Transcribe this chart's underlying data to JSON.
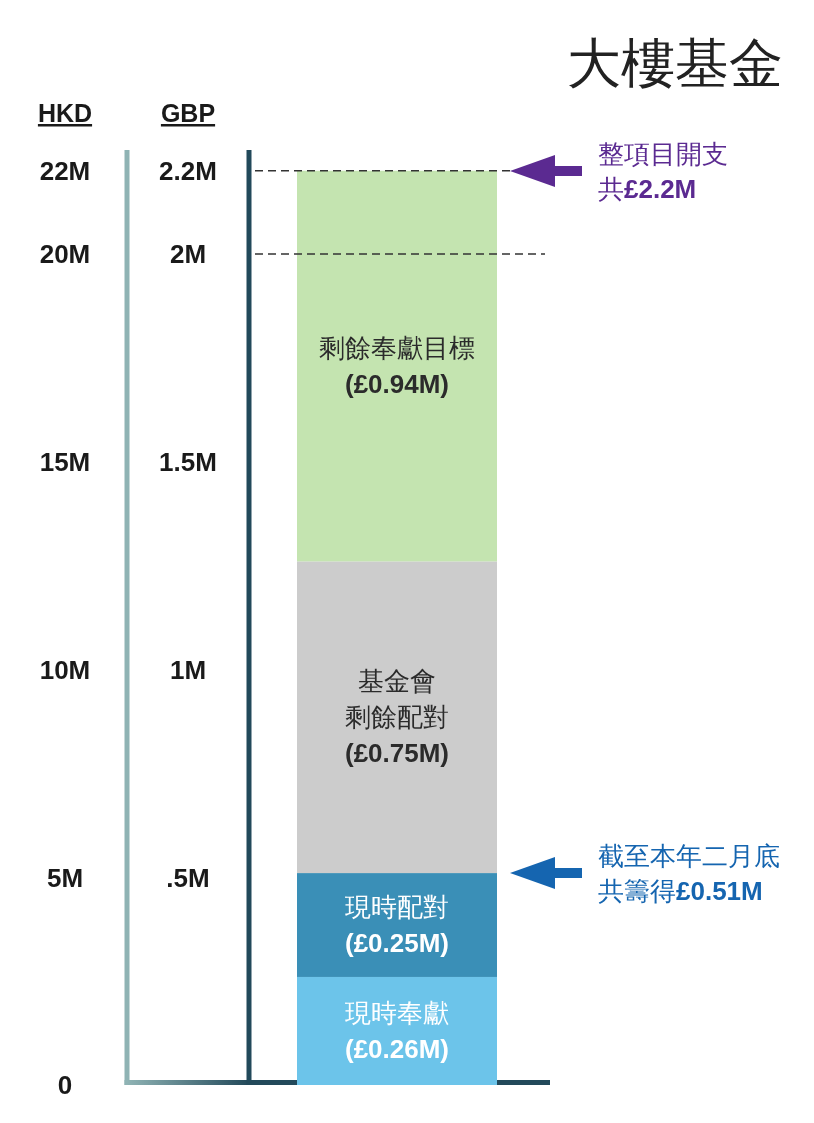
{
  "chart_data": {
    "type": "bar",
    "title": "大樓基金",
    "ylabel": "GBP",
    "y2label": "HKD",
    "categories": [
      null
    ],
    "stacked": true,
    "series": [
      {
        "name": "現時奉獻",
        "color": "#6cc4ea",
        "values": [
          0.26
        ],
        "value_labels": [
          "(£0.26M)"
        ]
      },
      {
        "name": "現時配對",
        "color": "#3a8fb7",
        "values": [
          0.25
        ],
        "value_labels": [
          "(£0.25M)"
        ]
      },
      {
        "name": "基金會剩餘配對",
        "color": "#cccccc",
        "values": [
          0.75
        ],
        "value_labels": [
          "(£0.75M)"
        ]
      },
      {
        "name": "剩餘奉獻目標",
        "color": "#c4e4b0",
        "values": [
          0.94
        ],
        "value_labels": [
          "(£0.94M)"
        ]
      }
    ],
    "ylim": [
      0,
      2.25
    ],
    "yticks": [
      {
        "value": 0.5,
        "label": ".5M"
      },
      {
        "value": 1,
        "label": "1M"
      },
      {
        "value": 1.5,
        "label": "1.5M"
      },
      {
        "value": 2,
        "label": "2M"
      },
      {
        "value": 2.2,
        "label": "2.2M"
      }
    ],
    "y2lim": [
      0,
      22.5
    ],
    "y2ticks": [
      0,
      {
        "value": 5,
        "label": "5M"
      },
      {
        "value": 10,
        "label": "10M"
      },
      {
        "value": 15,
        "label": "15M"
      },
      {
        "value": 20,
        "label": "20M"
      },
      {
        "value": 22,
        "label": "22M"
      }
    ],
    "ref_lines": [
      {
        "axis": "y",
        "value": 2.2,
        "line_style": "dashed"
      },
      {
        "axis": "y",
        "value": 2,
        "line_style": "dashed"
      }
    ],
    "annotations": [
      "整項目開支",
      "共£2.2M",
      "截至本年二月底",
      "共籌得£0.51M"
    ],
    "legend": false,
    "grid": false
  }
}
